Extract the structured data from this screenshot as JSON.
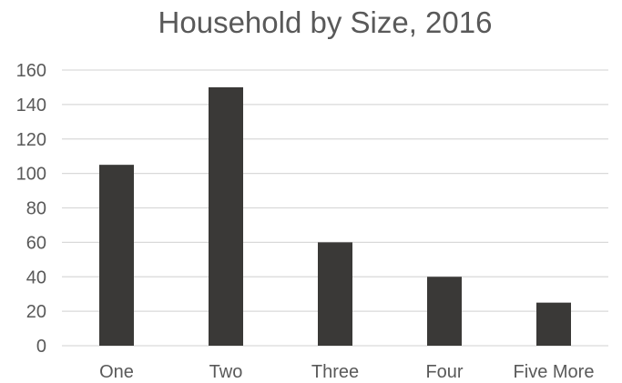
{
  "chart_data": {
    "type": "bar",
    "title": "Household by Size, 2016",
    "categories": [
      "One",
      "Two",
      "Three",
      "Four",
      "Five More"
    ],
    "values": [
      105,
      150,
      60,
      40,
      25
    ],
    "xlabel": "",
    "ylabel": "",
    "ylim": [
      0,
      160
    ],
    "yticks": [
      0,
      20,
      40,
      60,
      80,
      100,
      120,
      140,
      160
    ],
    "grid": true,
    "legend": "none",
    "bar_color": "#3a3937",
    "grid_color": "#d9d9d9",
    "text_color": "#595959"
  }
}
